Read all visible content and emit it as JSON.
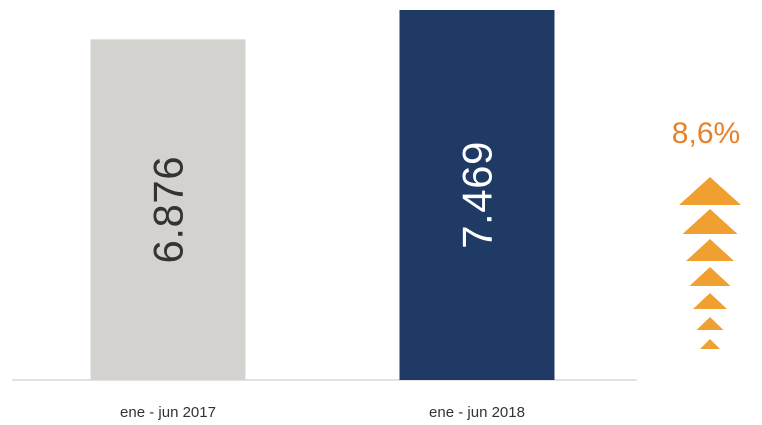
{
  "chart_data": {
    "type": "bar",
    "categories": [
      "ene - jun 2017",
      "ene - jun 2018"
    ],
    "values": [
      6876,
      7469
    ],
    "value_labels": [
      "6.876",
      "7.469"
    ],
    "bar_colors": [
      "#d4d2cf",
      "#1f3a64"
    ],
    "value_label_colors": [
      "#333333",
      "#ffffff"
    ],
    "change": {
      "label": "8,6%",
      "color": "#f0a030",
      "label_color": "#e8812a",
      "arrow_count": 7,
      "direction": "up"
    },
    "ylim": [
      0,
      7469
    ],
    "title": "",
    "xlabel": "",
    "ylabel": "",
    "grid": false,
    "legend": "none"
  }
}
